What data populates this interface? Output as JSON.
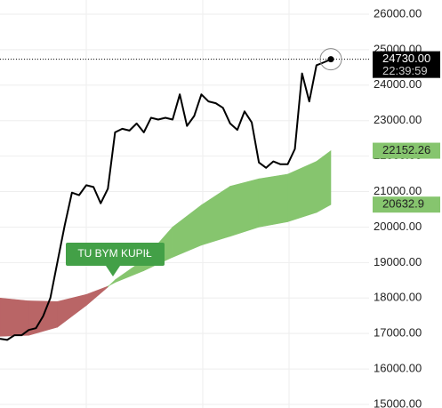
{
  "chart_data": {
    "type": "line",
    "values": [
      16850,
      16820,
      16950,
      16950,
      17100,
      17150,
      17490,
      18000,
      19030,
      20050,
      20970,
      20900,
      21180,
      21130,
      20670,
      21080,
      22670,
      22770,
      22720,
      22920,
      22670,
      23080,
      23030,
      23080,
      23030,
      23740,
      22850,
      23130,
      23740,
      23540,
      23490,
      23360,
      22920,
      22740,
      23260,
      22950,
      21820,
      21670,
      21850,
      21770,
      21770,
      22200,
      24330,
      23540,
      24560,
      24640,
      24730
    ],
    "color": "#000000",
    "last_value_label": "24730.00",
    "last_time": "22:39:59",
    "cloud": {
      "x": [
        0,
        4,
        8,
        12,
        15,
        16,
        20,
        24,
        28,
        32,
        36,
        40,
        44,
        46
      ],
      "a": [
        16920,
        16950,
        17180,
        17790,
        18310,
        18510,
        19080,
        20000,
        20620,
        21150,
        21360,
        21490,
        21850,
        22152.26
      ],
      "b": [
        18000,
        17920,
        17900,
        18100,
        18330,
        18440,
        18770,
        19150,
        19490,
        19740,
        20000,
        20150,
        20410,
        20632.9
      ],
      "up_color": "#86c56e",
      "down_color": "#b96566"
    },
    "annotation": "TU BYM KUPIŁ",
    "annotation_color": "#43a047",
    "xlim": [
      0,
      46
    ],
    "ylim": [
      14900,
      26400
    ],
    "yticks": [
      {
        "value": 15000,
        "label": "15000.00"
      },
      {
        "value": 16000,
        "label": "16000.00"
      },
      {
        "value": 17000,
        "label": "17000.00"
      },
      {
        "value": 18000,
        "label": "18000.00"
      },
      {
        "value": 19000,
        "label": "19000.00"
      },
      {
        "value": 20000,
        "label": "20000.00"
      },
      {
        "value": 21000,
        "label": "21000.00"
      },
      {
        "value": 22000,
        "label": "22000.00"
      },
      {
        "value": 23000,
        "label": "23000.00"
      },
      {
        "value": 24000,
        "label": "24000.00"
      },
      {
        "value": 25000,
        "label": "25000.00"
      },
      {
        "value": 26000,
        "label": "26000.00"
      }
    ],
    "grid": true
  }
}
